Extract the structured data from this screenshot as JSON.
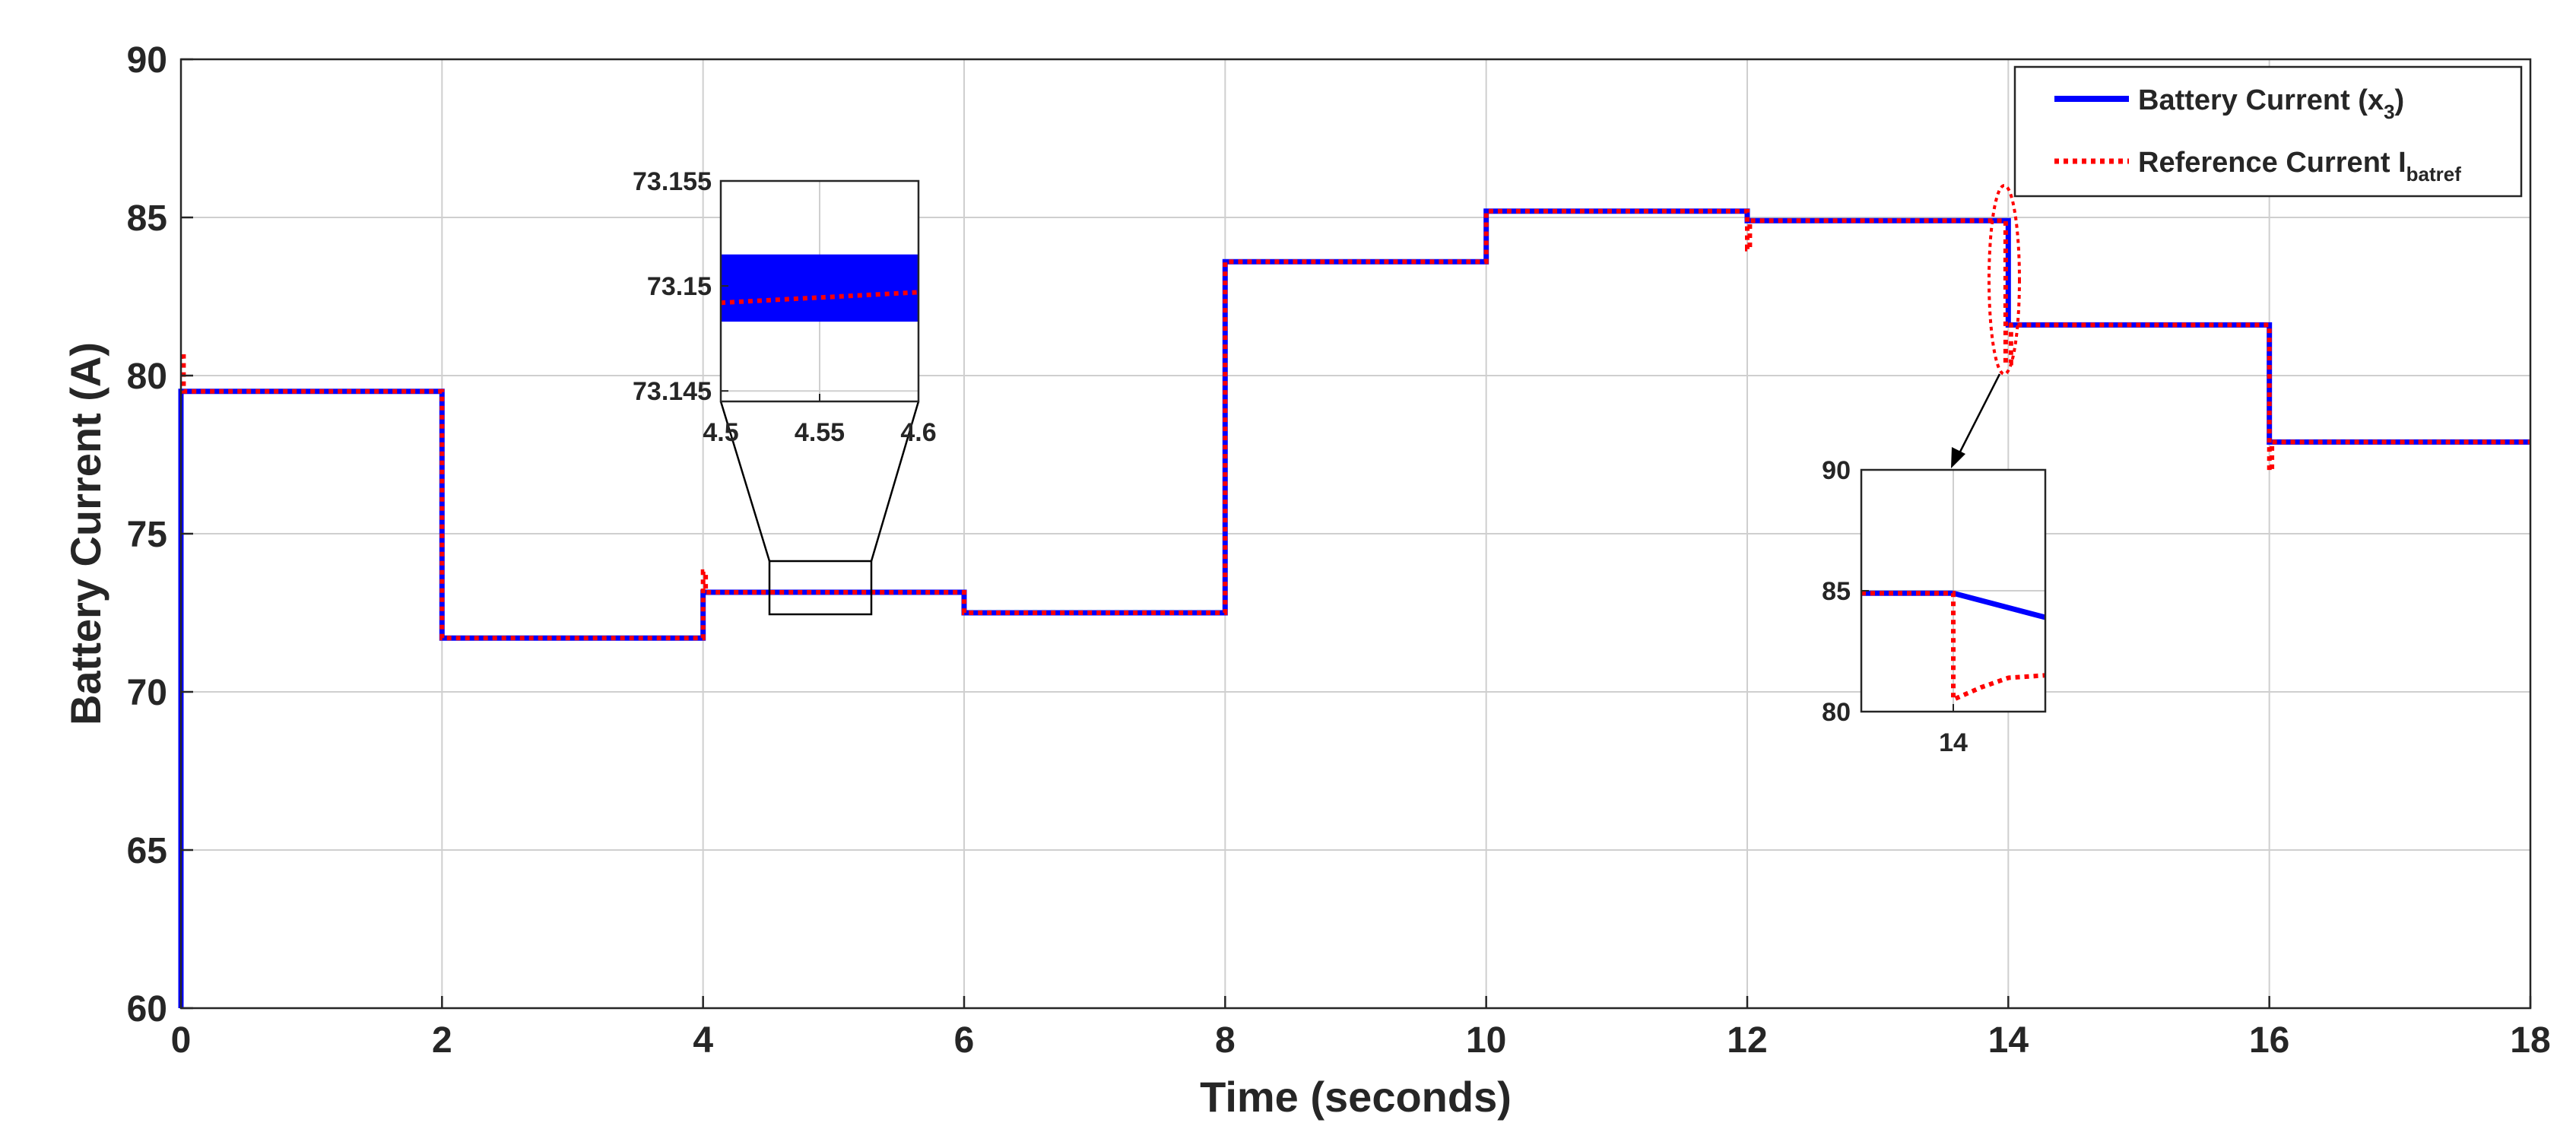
{
  "colors": {
    "battery_current": "#0000ff",
    "reference_current": "#ff0000",
    "axis": "#262626",
    "grid": "#cfcfcf"
  },
  "chart_data": {
    "type": "line",
    "xlabel": "Time (seconds)",
    "ylabel": "Battery Current (A)",
    "xlim": [
      0,
      18
    ],
    "ylim": [
      60,
      90
    ],
    "xticks": [
      "0",
      "2",
      "4",
      "6",
      "8",
      "10",
      "12",
      "14",
      "16",
      "18"
    ],
    "yticks": [
      "60",
      "65",
      "70",
      "75",
      "80",
      "85",
      "90"
    ],
    "grid": true,
    "legend_position": "top-right",
    "legend": [
      {
        "prefix": "Battery Current (x",
        "sub": "3",
        "suffix": ")",
        "style": "solid",
        "color": "#0000ff"
      },
      {
        "prefix": "Reference Current I",
        "sub": "batref",
        "suffix": "",
        "style": "dotted",
        "color": "#ff0000"
      }
    ],
    "series": [
      {
        "name": "Battery Current (x3)",
        "x": [
          0,
          0,
          0.03,
          2,
          2,
          4,
          4,
          6,
          6,
          8,
          8,
          10,
          10,
          12,
          12,
          14,
          14,
          16,
          16,
          18
        ],
        "y": [
          60,
          79.5,
          79.5,
          79.5,
          71.7,
          71.7,
          73.15,
          73.15,
          72.5,
          72.5,
          83.6,
          83.6,
          85.2,
          85.2,
          84.9,
          84.9,
          81.6,
          81.6,
          77.9,
          77.9
        ]
      },
      {
        "name": "Reference Current Ibatref",
        "x": [
          0,
          0.02,
          0.02,
          2,
          2,
          4,
          4,
          4.02,
          4.02,
          6,
          6,
          8,
          8,
          10,
          10,
          12,
          12,
          12.02,
          12.02,
          13.98,
          13.98,
          14.02,
          14.02,
          16,
          16,
          16.02,
          16.02,
          18
        ],
        "y": [
          80.6,
          80.6,
          79.5,
          79.5,
          71.7,
          71.7,
          73.8,
          73.8,
          73.15,
          73.15,
          72.5,
          72.5,
          83.6,
          83.6,
          85.2,
          85.2,
          84.0,
          84.0,
          84.9,
          84.9,
          80.4,
          80.4,
          81.6,
          81.6,
          77.0,
          77.0,
          77.9,
          77.9
        ]
      }
    ],
    "insets": [
      {
        "xlim": [
          4.5,
          4.6
        ],
        "ylim": [
          73.1445,
          73.155
        ],
        "xticks": [
          "4.5",
          "4.55",
          "4.6"
        ],
        "yticks": [
          "73.145",
          "73.15",
          "73.155"
        ],
        "series": [
          {
            "name": "Battery Current (x3)",
            "band": [
              73.1483,
              73.1515
            ]
          },
          {
            "name": "Reference Current Ibatref",
            "x": [
              4.5,
              4.6
            ],
            "y": [
              73.1492,
              73.1497
            ]
          }
        ]
      },
      {
        "xlim": [
          13.998,
          14.002
        ],
        "ylim": [
          80,
          90
        ],
        "xticks": [
          "14"
        ],
        "yticks": [
          "80",
          "85",
          "90"
        ],
        "series": [
          {
            "name": "Battery Current (x3)",
            "x": [
              13.998,
              14.0,
              14.002
            ],
            "y": [
              84.9,
              84.9,
              83.9
            ]
          },
          {
            "name": "Reference Current Ibatref",
            "x": [
              13.998,
              14.0,
              14.0,
              14.0006,
              14.0012,
              14.002
            ],
            "y": [
              84.9,
              84.9,
              80.5,
              81.0,
              81.4,
              81.5
            ]
          }
        ]
      }
    ]
  }
}
